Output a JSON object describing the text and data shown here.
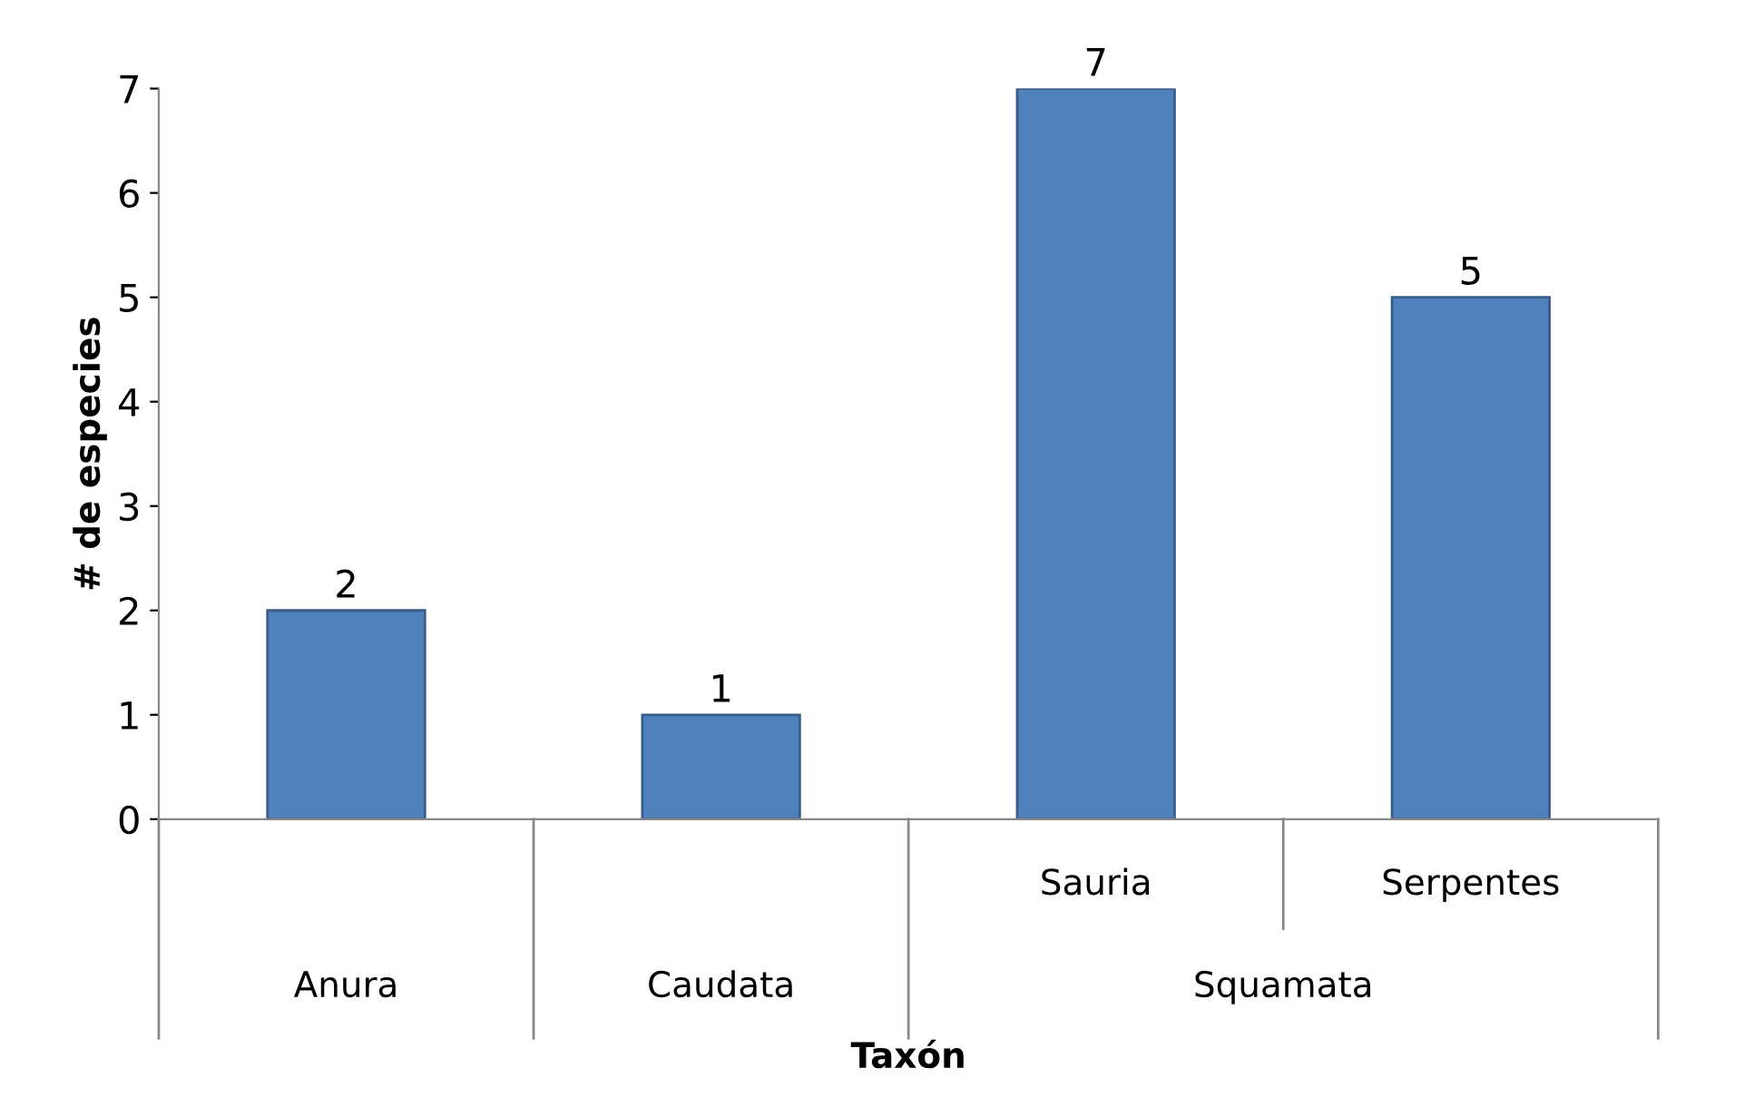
{
  "chart_data": {
    "type": "bar",
    "xlabel": "Taxón",
    "ylabel": "# de especies",
    "categories": [
      "Anura",
      "Caudata",
      "Sauria",
      "Serpentes"
    ],
    "values": [
      2,
      1,
      7,
      5
    ],
    "color": "#4f81bd",
    "ylim": [
      0,
      7
    ],
    "yticks": [
      0,
      1,
      2,
      3,
      4,
      5,
      6,
      7
    ],
    "grid": false,
    "data_labels": true,
    "annotations": [
      "Squamata"
    ]
  }
}
